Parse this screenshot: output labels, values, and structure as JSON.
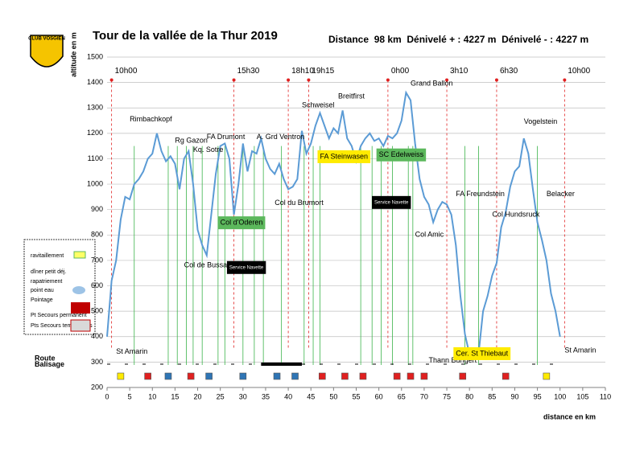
{
  "chart_data": {
    "type": "line",
    "title": "Tour de la vallée de la Thur 2019",
    "subtitle": "Distance  98 km  Dénivelé + : 4227 m  Dénivelé - : 4227 m",
    "logo": "CLUB VOSGIEN",
    "x_label": "distance en km",
    "y_label": "altitude en m",
    "x": [
      0,
      1,
      2,
      3,
      4,
      5,
      6,
      7,
      8,
      9,
      10,
      11,
      12,
      13,
      14,
      15,
      16,
      17,
      18,
      19,
      20,
      21,
      22,
      23,
      24,
      25,
      26,
      27,
      28,
      29,
      30,
      31,
      32,
      33,
      34,
      35,
      36,
      37,
      38,
      39,
      40,
      41,
      42,
      43,
      44,
      45,
      46,
      47,
      48,
      49,
      50,
      51,
      52,
      53,
      54,
      55,
      56,
      57,
      58,
      59,
      60,
      61,
      62,
      63,
      64,
      65,
      66,
      67,
      68,
      69,
      70,
      71,
      72,
      73,
      74,
      75,
      76,
      77,
      78,
      79,
      80,
      81,
      82,
      83,
      84,
      85,
      86,
      87,
      88,
      89,
      90,
      91,
      92,
      93,
      94,
      95,
      96,
      97,
      98,
      99,
      100
    ],
    "series": [
      {
        "name": "altitude",
        "color": "#5b9bd5",
        "values": [
          400,
          620,
          700,
          860,
          950,
          940,
          1000,
          1020,
          1050,
          1100,
          1120,
          1200,
          1130,
          1090,
          1110,
          1080,
          980,
          1100,
          1130,
          1000,
          820,
          760,
          720,
          880,
          1040,
          1150,
          1160,
          1100,
          880,
          1000,
          1160,
          1050,
          1130,
          1120,
          1180,
          1100,
          1060,
          1040,
          1080,
          1020,
          980,
          990,
          1020,
          1210,
          1120,
          1160,
          1230,
          1280,
          1230,
          1180,
          1220,
          1200,
          1290,
          1180,
          1150,
          1090,
          1150,
          1180,
          1200,
          1170,
          1180,
          1150,
          1190,
          1180,
          1200,
          1250,
          1360,
          1330,
          1160,
          1020,
          950,
          920,
          850,
          900,
          930,
          920,
          880,
          760,
          560,
          410,
          330,
          320,
          330,
          500,
          560,
          640,
          690,
          830,
          890,
          990,
          1050,
          1070,
          1180,
          1120,
          980,
          850,
          780,
          700,
          570,
          500,
          400
        ]
      }
    ],
    "xlim": [
      0,
      110
    ],
    "xticks": [
      0,
      5,
      10,
      15,
      20,
      25,
      30,
      35,
      40,
      45,
      50,
      55,
      60,
      65,
      70,
      75,
      80,
      85,
      90,
      95,
      100,
      105,
      110
    ],
    "ylim": [
      200,
      1500
    ],
    "yticks": [
      200,
      300,
      400,
      500,
      600,
      700,
      800,
      900,
      1000,
      1100,
      1200,
      1300,
      1400,
      1500
    ],
    "grid": true,
    "time_markers": {
      "x": [
        1,
        28,
        40,
        44.5,
        62,
        75,
        86,
        101
      ],
      "labels": [
        "10h00",
        "15h30",
        "18h10",
        "19h15",
        "0h00",
        "3h10",
        "6h30",
        "10h00"
      ],
      "color": "#e02020"
    },
    "annotations": [
      "Rimbachkopf",
      "Rg Gazon",
      "FA Drumont",
      "Kq. Sotre",
      "A. Grd Ventron",
      "Schweisel",
      "Breitfirst",
      "Grand Ballon",
      "Col du Brumort",
      "Col de Bussang",
      "FA Freundstein",
      "Col Hundsruck",
      "Col Amic",
      "Vogelstein",
      "Belacker",
      "Thann Bungert",
      "St Amarin",
      "St Amarin",
      "Col d'Oderen",
      "FA Steinwasen",
      "SC Edelweiss",
      "Cer. St Thiebaut",
      "Service Navette",
      "Service Navette",
      "Route",
      "Balisage"
    ],
    "legend_items": [
      "ravitaillement",
      "dîner petit déj.",
      "rapatriement",
      "point eau",
      "Pointage",
      "Pt Secours permanent",
      "Pts Secours temporaires"
    ]
  }
}
